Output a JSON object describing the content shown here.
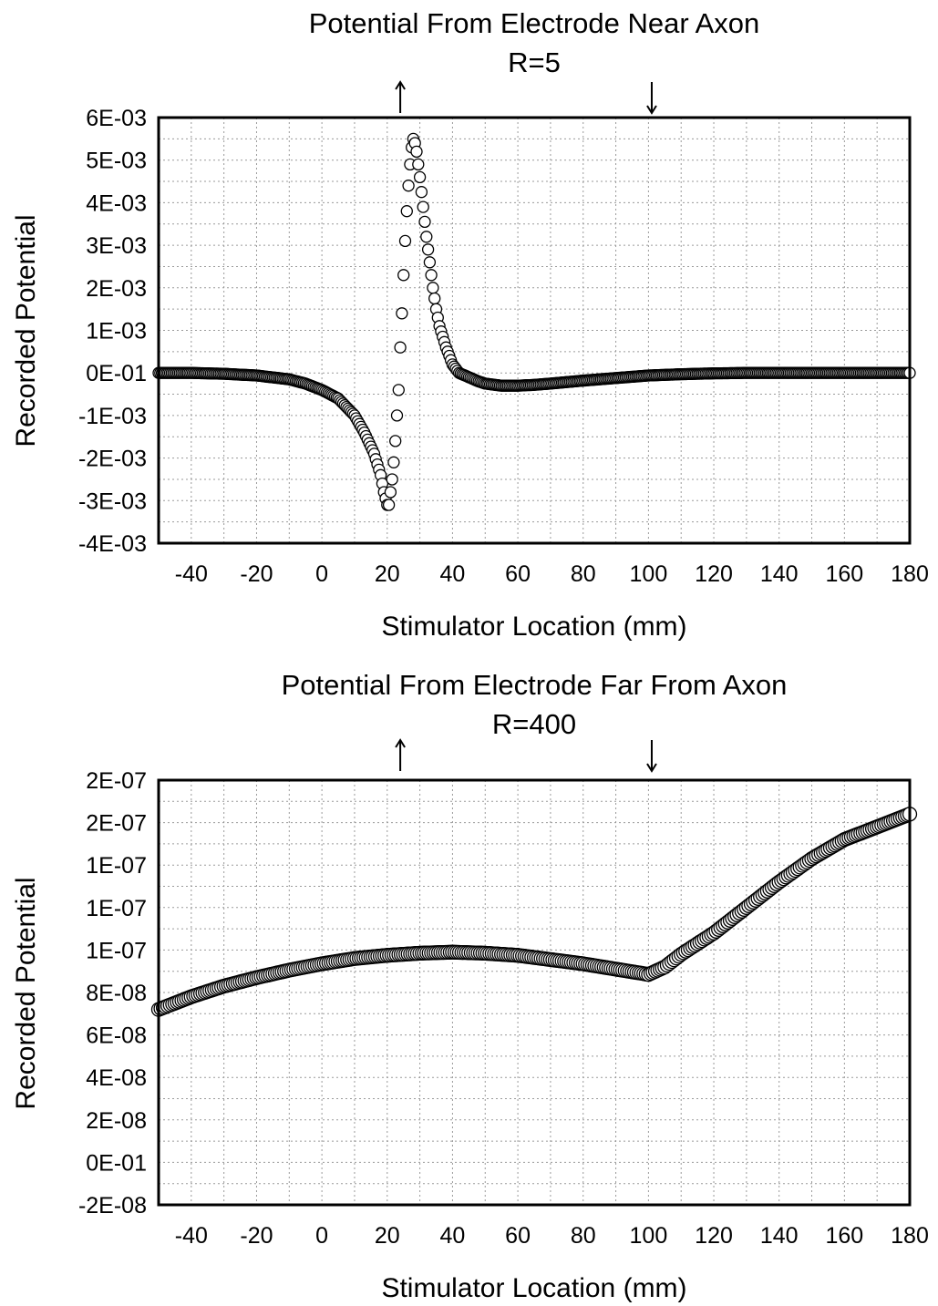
{
  "chart_data": [
    {
      "type": "scatter",
      "title": "Potential From Electrode Near Axon",
      "subtitle": "R=5",
      "xlabel": "Stimulator Location (mm)",
      "ylabel": "Recorded Potential",
      "xlim": [
        -50,
        180
      ],
      "ylim": [
        -0.004,
        0.006
      ],
      "grid": true,
      "x_ticks": [
        -40,
        -20,
        0,
        20,
        40,
        60,
        80,
        100,
        120,
        140,
        160,
        180
      ],
      "x_tick_labels": [
        "-40",
        "-20",
        "0",
        "20",
        "40",
        "60",
        "80",
        "100",
        "120",
        "140",
        "160",
        "180"
      ],
      "y_ticks": [
        -0.004,
        -0.003,
        -0.002,
        -0.001,
        0,
        0.001,
        0.002,
        0.003,
        0.004,
        0.005,
        0.006
      ],
      "y_tick_labels": [
        "-4E-03",
        "-3E-03",
        "-2E-03",
        "-1E-03",
        "0E-01",
        "1E-03",
        "2E-03",
        "3E-03",
        "4E-03",
        "5E-03",
        "6E-03"
      ],
      "markers": [
        {
          "x": 24,
          "direction": "up"
        },
        {
          "x": 101,
          "direction": "down"
        }
      ],
      "series": [
        {
          "x": [
            -50,
            -40,
            -30,
            -20,
            -10,
            -5,
            0,
            5,
            10,
            13,
            16,
            18,
            19,
            20,
            20.5,
            21,
            21.5,
            22,
            22.5,
            23,
            23.5,
            24,
            24.5,
            25,
            25.5,
            26,
            26.5,
            27,
            27.5,
            28,
            28.5,
            29,
            29.5,
            30,
            31,
            32,
            33,
            34,
            35,
            36,
            38,
            40,
            42,
            45,
            48,
            50,
            55,
            60,
            65,
            70,
            80,
            90,
            100,
            110,
            120,
            130,
            140,
            150,
            160,
            170,
            180
          ],
          "y": [
            0,
            0,
            -2e-05,
            -6e-05,
            -0.00015,
            -0.00025,
            -0.0004,
            -0.0006,
            -0.001,
            -0.0014,
            -0.0019,
            -0.0024,
            -0.0028,
            -0.0031,
            -0.0031,
            -0.0028,
            -0.0025,
            -0.0021,
            -0.0016,
            -0.001,
            -0.0004,
            0.0006,
            0.0014,
            0.0023,
            0.0031,
            0.0038,
            0.0044,
            0.0049,
            0.0053,
            0.0055,
            0.0054,
            0.0052,
            0.0049,
            0.0046,
            0.0039,
            0.0032,
            0.0026,
            0.002,
            0.0015,
            0.0011,
            0.0006,
            0.0002,
            0,
            -0.0001,
            -0.0002,
            -0.00025,
            -0.0003,
            -0.0003,
            -0.00028,
            -0.00025,
            -0.00018,
            -0.00012,
            -6e-05,
            -3e-05,
            -1e-05,
            0,
            0,
            0,
            0,
            0,
            0
          ]
        }
      ]
    },
    {
      "type": "scatter",
      "title": "Potential From Electrode Far From Axon",
      "subtitle": "R=400",
      "xlabel": "Stimulator Location (mm)",
      "ylabel": "Recorded Potential",
      "xlim": [
        -50,
        180
      ],
      "ylim": [
        -2e-08,
        1.8e-07
      ],
      "grid": true,
      "x_ticks": [
        -40,
        -20,
        0,
        20,
        40,
        60,
        80,
        100,
        120,
        140,
        160,
        180
      ],
      "x_tick_labels": [
        "-40",
        "-20",
        "0",
        "20",
        "40",
        "60",
        "80",
        "100",
        "120",
        "140",
        "160",
        "180"
      ],
      "y_ticks": [
        -2e-08,
        0,
        2e-08,
        4e-08,
        6e-08,
        8e-08,
        1e-07,
        1.2e-07,
        1.4e-07,
        1.6e-07,
        1.8e-07
      ],
      "y_tick_labels": [
        "-2E-08",
        "0E-01",
        "2E-08",
        "4E-08",
        "6E-08",
        "8E-08",
        "1E-07",
        "1E-07",
        "1E-07",
        "2E-07",
        "2E-07"
      ],
      "markers": [
        {
          "x": 24,
          "direction": "up"
        },
        {
          "x": 101,
          "direction": "down"
        }
      ],
      "series": [
        {
          "x": [
            -50,
            -40,
            -30,
            -20,
            -10,
            0,
            10,
            20,
            30,
            40,
            50,
            60,
            70,
            80,
            90,
            100,
            105,
            110,
            120,
            130,
            140,
            150,
            160,
            170,
            180
          ],
          "y": [
            7.2e-08,
            7.8e-08,
            8.3e-08,
            8.7e-08,
            9.05e-08,
            9.35e-08,
            9.6e-08,
            9.75e-08,
            9.85e-08,
            9.9e-08,
            9.85e-08,
            9.75e-08,
            9.55e-08,
            9.35e-08,
            9.1e-08,
            8.85e-08,
            9.2e-08,
            9.8e-08,
            1.08e-07,
            1.2e-07,
            1.32e-07,
            1.43e-07,
            1.52e-07,
            1.58e-07,
            1.64e-07
          ]
        }
      ]
    }
  ]
}
